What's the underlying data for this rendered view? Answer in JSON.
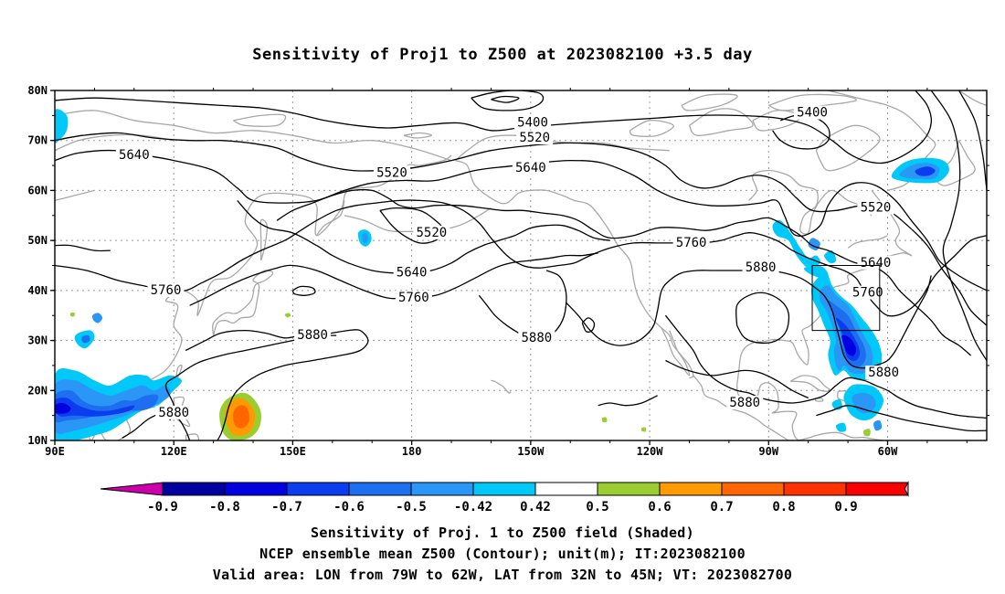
{
  "title": "Sensitivity of Proj1 to Z500 at 2023082100 +3.5 day",
  "lat_ticks": [
    "80N",
    "70N",
    "60N",
    "50N",
    "40N",
    "30N",
    "20N",
    "10N"
  ],
  "lon_ticks": [
    "90E",
    "120E",
    "150E",
    "180",
    "150W",
    "120W",
    "90W",
    "60W"
  ],
  "contour_levels": [
    "5400",
    "5520",
    "5640",
    "5760",
    "5880"
  ],
  "contour_labels": [
    {
      "text": "5640",
      "lon": 110,
      "lat": 67
    },
    {
      "text": "5520",
      "lon": 175,
      "lat": 63.5
    },
    {
      "text": "5400",
      "lon": 210.5,
      "lat": 73.5
    },
    {
      "text": "5520",
      "lon": 211,
      "lat": 70.5
    },
    {
      "text": "5640",
      "lon": 210,
      "lat": 64.5
    },
    {
      "text": "5400",
      "lon": 281,
      "lat": 75.5
    },
    {
      "text": "5520",
      "lon": 297,
      "lat": 56.5
    },
    {
      "text": "5520",
      "lon": 185,
      "lat": 51.5
    },
    {
      "text": "5760",
      "lon": 250.5,
      "lat": 49.5
    },
    {
      "text": "5880",
      "lon": 268,
      "lat": 44.5
    },
    {
      "text": "5640",
      "lon": 297,
      "lat": 45.5
    },
    {
      "text": "5760",
      "lon": 295,
      "lat": 39.5
    },
    {
      "text": "5640",
      "lon": 180,
      "lat": 43.5
    },
    {
      "text": "5760",
      "lon": 180.5,
      "lat": 38.5
    },
    {
      "text": "5760",
      "lon": 118,
      "lat": 40
    },
    {
      "text": "5880",
      "lon": 155,
      "lat": 31
    },
    {
      "text": "5880",
      "lon": 211.5,
      "lat": 30.5
    },
    {
      "text": "5880",
      "lon": 299,
      "lat": 23.5
    },
    {
      "text": "5880",
      "lon": 264,
      "lat": 17.5
    },
    {
      "text": "5880",
      "lon": 120,
      "lat": 15.5
    }
  ],
  "valid_area": {
    "lon": [
      281,
      298
    ],
    "lat": [
      32,
      45
    ]
  },
  "colorbar": {
    "labels": [
      "-0.9",
      "-0.8",
      "-0.7",
      "-0.6",
      "-0.5",
      "-0.42",
      "0.42",
      "0.5",
      "0.6",
      "0.7",
      "0.8",
      "0.9"
    ],
    "colors": [
      "#cc00aa",
      "#0000a0",
      "#0000e0",
      "#0b3cf0",
      "#1e6ef0",
      "#2a96f5",
      "#00c8f8",
      "#ffffff",
      "#9acd32",
      "#ff9a00",
      "#ff6600",
      "#ff3300",
      "#f80000",
      "#f8a0c8"
    ]
  },
  "caption_lines": [
    "Sensitivity of Proj. 1 to Z500 field (Shaded)",
    "NCEP ensemble mean Z500 (Contour); unit(m); IT:2023082100",
    "Valid area: LON from 79W to 62W, LAT from 32N to 45N; VT: 2023082700"
  ]
}
